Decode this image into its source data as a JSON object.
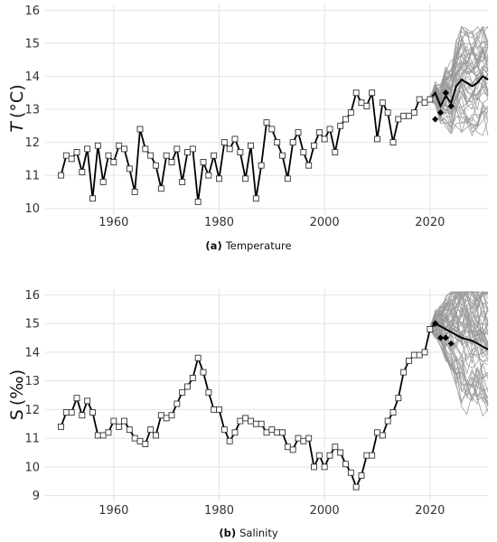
{
  "chart_data": [
    {
      "type": "line",
      "caption_label": "(a)",
      "caption_text": "Temperature",
      "ylabel_symbol": "T",
      "ylabel_unit": "(°C)",
      "xlim": [
        1947,
        2031
      ],
      "ylim": [
        9.8,
        16.2
      ],
      "xticks": [
        1960,
        1980,
        2000,
        2020
      ],
      "yticks": [
        10,
        11,
        12,
        13,
        14,
        15,
        16
      ],
      "grid": true,
      "series": [
        {
          "role": "observed",
          "marker": "open-square",
          "x": [
            1950,
            1951,
            1952,
            1953,
            1954,
            1955,
            1956,
            1957,
            1958,
            1959,
            1960,
            1961,
            1962,
            1963,
            1964,
            1965,
            1966,
            1967,
            1968,
            1969,
            1970,
            1971,
            1972,
            1973,
            1974,
            1975,
            1976,
            1977,
            1978,
            1979,
            1980,
            1981,
            1982,
            1983,
            1984,
            1985,
            1986,
            1987,
            1988,
            1989,
            1990,
            1991,
            1992,
            1993,
            1994,
            1995,
            1996,
            1997,
            1998,
            1999,
            2000,
            2001,
            2002,
            2003,
            2004,
            2005,
            2006,
            2007,
            2008,
            2009,
            2010,
            2011,
            2012,
            2013,
            2014,
            2015,
            2016,
            2017,
            2018,
            2019,
            2020
          ],
          "y": [
            11.0,
            11.6,
            11.5,
            11.7,
            11.1,
            11.8,
            10.3,
            11.9,
            10.8,
            11.6,
            11.4,
            11.9,
            11.8,
            11.2,
            10.5,
            12.4,
            11.8,
            11.6,
            11.3,
            10.6,
            11.6,
            11.4,
            11.8,
            10.8,
            11.7,
            11.8,
            10.2,
            11.4,
            11.0,
            11.6,
            10.9,
            12.0,
            11.8,
            12.1,
            11.7,
            10.9,
            11.9,
            10.3,
            11.3,
            12.6,
            12.4,
            12.0,
            11.6,
            10.9,
            12.0,
            12.3,
            11.7,
            11.3,
            11.9,
            12.3,
            12.1,
            12.4,
            11.7,
            12.5,
            12.7,
            12.9,
            13.5,
            13.2,
            13.1,
            13.5,
            12.1,
            13.2,
            12.9,
            12.0,
            12.7,
            12.8,
            12.8,
            12.9,
            13.3,
            13.2,
            13.3
          ]
        },
        {
          "role": "forecast-mean",
          "x": [
            2020,
            2021,
            2022,
            2023,
            2024,
            2025,
            2026,
            2027,
            2028,
            2029,
            2030,
            2031
          ],
          "y": [
            13.3,
            13.5,
            13.1,
            13.4,
            13.2,
            13.7,
            13.9,
            13.8,
            13.7,
            13.8,
            14.0,
            13.9
          ]
        },
        {
          "role": "test-points",
          "marker": "filled-diamond",
          "x": [
            2021,
            2022,
            2023,
            2024
          ],
          "y": [
            12.7,
            12.9,
            13.5,
            13.1
          ]
        }
      ],
      "ensemble": {
        "count": 50,
        "color": "#999999",
        "x_start": 2020,
        "x_end": 2031,
        "y_min": 12.2,
        "y_max": 15.5
      }
    },
    {
      "type": "line",
      "caption_label": "(b)",
      "caption_text": "Salinity",
      "ylabel_symbol": "S",
      "ylabel_unit": "(‰)",
      "xlim": [
        1947,
        2031
      ],
      "ylim": [
        8.8,
        16.2
      ],
      "xticks": [
        1960,
        1980,
        2000,
        2020
      ],
      "yticks": [
        9,
        10,
        11,
        12,
        13,
        14,
        15,
        16
      ],
      "grid": true,
      "series": [
        {
          "role": "observed",
          "marker": "open-square",
          "x": [
            1950,
            1951,
            1952,
            1953,
            1954,
            1955,
            1956,
            1957,
            1958,
            1959,
            1960,
            1961,
            1962,
            1963,
            1964,
            1965,
            1966,
            1967,
            1968,
            1969,
            1970,
            1971,
            1972,
            1973,
            1974,
            1975,
            1976,
            1977,
            1978,
            1979,
            1980,
            1981,
            1982,
            1983,
            1984,
            1985,
            1986,
            1987,
            1988,
            1989,
            1990,
            1991,
            1992,
            1993,
            1994,
            1995,
            1996,
            1997,
            1998,
            1999,
            2000,
            2001,
            2002,
            2003,
            2004,
            2005,
            2006,
            2007,
            2008,
            2009,
            2010,
            2011,
            2012,
            2013,
            2014,
            2015,
            2016,
            2017,
            2018,
            2019,
            2020
          ],
          "y": [
            11.4,
            11.9,
            11.9,
            12.4,
            11.8,
            12.3,
            11.9,
            11.1,
            11.1,
            11.2,
            11.6,
            11.4,
            11.6,
            11.3,
            11.0,
            10.9,
            10.8,
            11.3,
            11.1,
            11.8,
            11.7,
            11.8,
            12.2,
            12.6,
            12.8,
            13.1,
            13.8,
            13.3,
            12.6,
            12.0,
            12.0,
            11.3,
            10.9,
            11.2,
            11.6,
            11.7,
            11.6,
            11.5,
            11.5,
            11.2,
            11.3,
            11.2,
            11.2,
            10.7,
            10.6,
            11.0,
            10.9,
            11.0,
            10.0,
            10.4,
            10.0,
            10.4,
            10.7,
            10.5,
            10.1,
            9.8,
            9.3,
            9.7,
            10.4,
            10.4,
            11.2,
            11.1,
            11.6,
            11.9,
            12.4,
            13.3,
            13.7,
            13.9,
            13.9,
            14.0,
            14.8
          ]
        },
        {
          "role": "forecast-mean",
          "x": [
            2020,
            2021,
            2022,
            2023,
            2024,
            2025,
            2026,
            2027,
            2028,
            2029,
            2030,
            2031
          ],
          "y": [
            14.8,
            15.0,
            14.9,
            14.8,
            14.7,
            14.6,
            14.5,
            14.45,
            14.4,
            14.3,
            14.2,
            14.1
          ]
        },
        {
          "role": "test-points",
          "marker": "filled-diamond",
          "x": [
            2021,
            2022,
            2023,
            2024
          ],
          "y": [
            15.0,
            14.5,
            14.5,
            14.3
          ]
        }
      ],
      "ensemble": {
        "count": 60,
        "color": "#999999",
        "x_start": 2020,
        "x_end": 2031,
        "y_min": 11.4,
        "y_max": 16.1
      }
    }
  ]
}
